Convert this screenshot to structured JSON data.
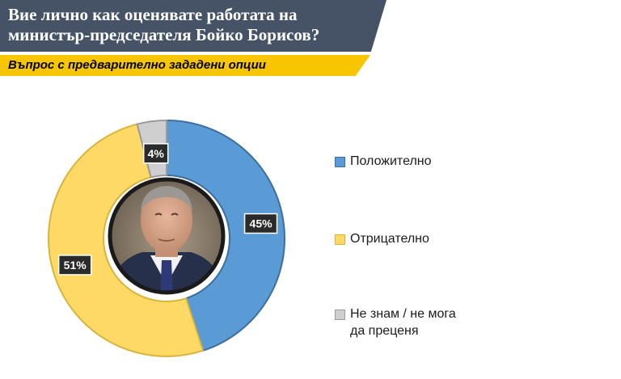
{
  "header": {
    "title_line1": "Вие лично как оценявате работата на",
    "title_line2": "министър-председателя Бойко Борисов?",
    "subtitle": "Въпрос с предварително зададени опции"
  },
  "colors": {
    "positive": "#5b9bd5",
    "negative": "#ffd966",
    "unknown": "#cfcfcf",
    "title_bg": "#465366",
    "subtitle_bg": "#f7c600"
  },
  "chart_data": {
    "type": "pie",
    "variant": "donut",
    "categories": [
      "Положително",
      "Отрицателно",
      "Не знам / не мога да преценя"
    ],
    "values": [
      45,
      51,
      4
    ],
    "labels": [
      "45%",
      "51%",
      "4%"
    ],
    "center_image": "portrait-photo",
    "legend_position": "right"
  },
  "legend": {
    "items": [
      {
        "line1": "Положително",
        "line2": ""
      },
      {
        "line1": "Отрицателно",
        "line2": ""
      },
      {
        "line1": "Не знам / не мога",
        "line2": "да преценя"
      }
    ]
  }
}
